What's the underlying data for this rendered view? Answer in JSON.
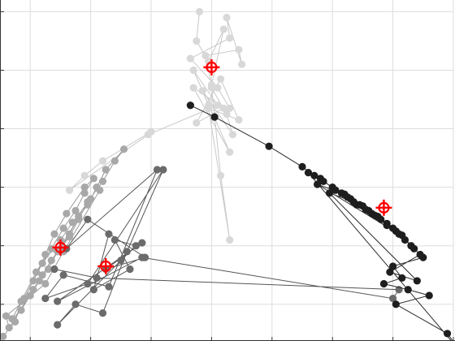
{
  "chart_data": {
    "type": "scatter",
    "title": "",
    "xlabel": "",
    "ylabel": "",
    "grid": true,
    "xlim": [
      -0.5,
      7.0
    ],
    "ylim": [
      -0.6,
      5.2
    ],
    "x_gridlines": [
      0,
      1,
      2,
      3,
      4,
      5,
      6,
      7
    ],
    "y_gridlines": [
      0,
      1,
      2,
      3,
      4,
      5
    ],
    "colors": {
      "grid": "#dddddd",
      "frame": "#333333",
      "centroid_marker": "#ff0000"
    },
    "series": [
      {
        "color": "#d8d8d8",
        "line_color": "#c8c8c8",
        "values": [
          [
            2.8,
            5.0
          ],
          [
            2.75,
            4.5
          ],
          [
            2.95,
            4.15
          ],
          [
            3.2,
            4.7
          ],
          [
            3.0,
            3.75
          ],
          [
            2.9,
            4.25
          ],
          [
            3.45,
            4.35
          ],
          [
            3.5,
            4.1
          ],
          [
            3.25,
            4.9
          ],
          [
            3.3,
            4.55
          ],
          [
            2.65,
            4.2
          ],
          [
            3.1,
            3.7
          ],
          [
            3.3,
            3.35
          ],
          [
            2.95,
            3.4
          ],
          [
            2.85,
            3.65
          ],
          [
            3.35,
            2.9
          ],
          [
            3.25,
            3.25
          ],
          [
            3.0,
            3.7
          ],
          [
            3.15,
            2.2
          ],
          [
            3.3,
            1.1
          ],
          [
            2.95,
            3.35
          ],
          [
            3.45,
            3.15
          ],
          [
            3.15,
            3.85
          ],
          [
            2.75,
            3.1
          ],
          [
            3.2,
            3.35
          ],
          [
            2.7,
            3.7
          ],
          [
            3.3,
            2.6
          ],
          [
            2.7,
            4.0
          ],
          [
            3.1,
            3.4
          ],
          [
            1.95,
            2.9
          ],
          [
            0.65,
            1.95
          ],
          [
            0.9,
            2.2
          ],
          [
            1.2,
            2.45
          ],
          [
            2.0,
            2.95
          ]
        ]
      },
      {
        "color": "#a8a8a8",
        "line_color": "#9a9a9a",
        "values": [
          [
            -0.45,
            -0.55
          ],
          [
            -0.25,
            -0.3
          ],
          [
            -0.15,
            0.05
          ],
          [
            0.05,
            0.25
          ],
          [
            0.2,
            0.5
          ],
          [
            0.35,
            0.75
          ],
          [
            0.5,
            0.95
          ],
          [
            0.65,
            1.2
          ],
          [
            0.8,
            1.5
          ],
          [
            0.95,
            1.7
          ],
          [
            1.1,
            2.0
          ],
          [
            1.25,
            2.3
          ],
          [
            1.55,
            2.65
          ],
          [
            1.4,
            2.45
          ],
          [
            1.2,
            2.1
          ],
          [
            0.95,
            1.75
          ],
          [
            0.8,
            1.45
          ],
          [
            0.65,
            1.15
          ],
          [
            0.45,
            0.9
          ],
          [
            0.3,
            0.6
          ],
          [
            0.15,
            0.4
          ],
          [
            0.0,
            0.15
          ],
          [
            -0.15,
            -0.1
          ],
          [
            -0.3,
            -0.25
          ],
          [
            0.1,
            0.55
          ],
          [
            0.35,
            0.95
          ],
          [
            0.55,
            1.3
          ],
          [
            0.75,
            1.6
          ],
          [
            0.9,
            1.9
          ],
          [
            1.05,
            2.15
          ],
          [
            0.9,
            2.0
          ],
          [
            0.6,
            1.55
          ],
          [
            0.4,
            1.2
          ],
          [
            0.25,
            0.85
          ],
          [
            0.05,
            0.4
          ],
          [
            -0.1,
            0.1
          ],
          [
            0.2,
            0.7
          ],
          [
            0.5,
            1.1
          ],
          [
            0.7,
            1.4
          ],
          [
            1.0,
            1.8
          ],
          [
            -0.35,
            -0.4
          ],
          [
            -0.4,
            -0.2
          ],
          [
            0.25,
            0.35
          ],
          [
            0.55,
            0.9
          ],
          [
            1.15,
            1.95
          ]
        ]
      },
      {
        "color": "#6b6b6b",
        "line_color": "#555555",
        "values": [
          [
            1.3,
            1.2
          ],
          [
            1.05,
            0.25
          ],
          [
            1.65,
            0.6
          ],
          [
            1.4,
            1.1
          ],
          [
            1.75,
            1.0
          ],
          [
            1.5,
            0.75
          ],
          [
            0.45,
            -0.35
          ],
          [
            0.75,
            0.0
          ],
          [
            1.2,
            -0.15
          ],
          [
            1.6,
            0.9
          ],
          [
            2.2,
            2.3
          ],
          [
            0.95,
            0.35
          ],
          [
            0.25,
            0.1
          ],
          [
            0.55,
            0.5
          ],
          [
            1.3,
            0.3
          ],
          [
            2.1,
            2.3
          ],
          [
            0.6,
            0.95
          ],
          [
            0.95,
            1.45
          ],
          [
            1.9,
            0.8
          ],
          [
            1.25,
            0.6
          ],
          [
            1.85,
            1.05
          ],
          [
            0.45,
            0.05
          ],
          [
            1.85,
            0.8
          ],
          [
            6.0,
            0.1
          ],
          [
            6.1,
            0.25
          ],
          [
            1.1,
            0.45
          ],
          [
            0.4,
            0.6
          ]
        ]
      },
      {
        "color": "#1e1e1e",
        "line_color": "#2a2a2a",
        "values": [
          [
            2.65,
            3.4
          ],
          [
            3.05,
            3.2
          ],
          [
            3.95,
            2.7
          ],
          [
            4.5,
            2.35
          ],
          [
            4.7,
            2.2
          ],
          [
            4.85,
            2.1
          ],
          [
            5.0,
            2.0
          ],
          [
            5.15,
            1.9
          ],
          [
            5.3,
            1.8
          ],
          [
            5.45,
            1.7
          ],
          [
            5.6,
            1.6
          ],
          [
            5.75,
            1.5
          ],
          [
            5.9,
            1.38
          ],
          [
            6.05,
            1.25
          ],
          [
            6.2,
            1.1
          ],
          [
            6.35,
            0.95
          ],
          [
            6.5,
            0.8
          ],
          [
            6.0,
            0.65
          ],
          [
            6.15,
            0.45
          ],
          [
            5.85,
            0.35
          ],
          [
            6.25,
            0.25
          ],
          [
            6.6,
            0.15
          ],
          [
            6.05,
            0.0
          ],
          [
            6.9,
            -0.5
          ],
          [
            7.15,
            -0.85
          ],
          [
            4.6,
            2.25
          ],
          [
            4.8,
            2.15
          ],
          [
            5.05,
            1.95
          ],
          [
            5.25,
            1.83
          ],
          [
            5.5,
            1.68
          ],
          [
            5.65,
            1.55
          ],
          [
            5.8,
            1.45
          ],
          [
            6.0,
            1.3
          ],
          [
            6.15,
            1.18
          ],
          [
            6.3,
            1.0
          ],
          [
            6.45,
            0.85
          ],
          [
            5.95,
            0.55
          ],
          [
            6.4,
            0.4
          ],
          [
            4.95,
            1.9
          ],
          [
            5.35,
            1.75
          ],
          [
            5.55,
            1.62
          ],
          [
            5.7,
            1.52
          ],
          [
            5.9,
            1.35
          ],
          [
            6.1,
            1.2
          ],
          [
            4.75,
            2.05
          ],
          [
            5.2,
            1.88
          ],
          [
            5.4,
            1.7
          ]
        ]
      }
    ],
    "centroids": [
      [
        3.0,
        4.05
      ],
      [
        0.5,
        0.97
      ],
      [
        1.25,
        0.65
      ],
      [
        5.85,
        1.65
      ]
    ]
  }
}
